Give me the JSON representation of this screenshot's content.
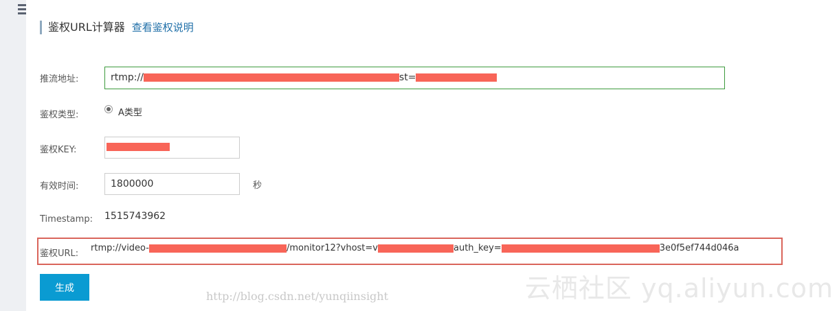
{
  "header": {
    "title": "鉴权URL计算器",
    "help_link": "查看鉴权说明"
  },
  "form": {
    "push_url": {
      "label": "推流地址:",
      "value_prefix": "rtmp://",
      "value_mid": "st="
    },
    "auth_type": {
      "label": "鉴权类型:",
      "option": "A类型",
      "selected": true
    },
    "auth_key": {
      "label": "鉴权KEY:"
    },
    "valid_time": {
      "label": "有效时间:",
      "value": "1800000",
      "unit": "秒"
    },
    "timestamp": {
      "label": "Timestamp:",
      "value": "1515743962"
    },
    "auth_url": {
      "label": "鉴权URL:",
      "part1": "rtmp://video-",
      "part2": "/monitor12?vhost=v",
      "part3": "auth_key=",
      "part4": "3e0f5ef744d046a"
    }
  },
  "actions": {
    "generate": "生成"
  },
  "watermark": {
    "line1": "云栖社区 yq.aliyun.com",
    "line2": "http://blog.csdn.net/yunqiinsight"
  },
  "colors": {
    "accent": "#0a9bd2",
    "link": "#1f6fa8",
    "highlight_border": "#d9645a",
    "focus_border": "#3c9a3c",
    "redaction": "#f86558"
  }
}
